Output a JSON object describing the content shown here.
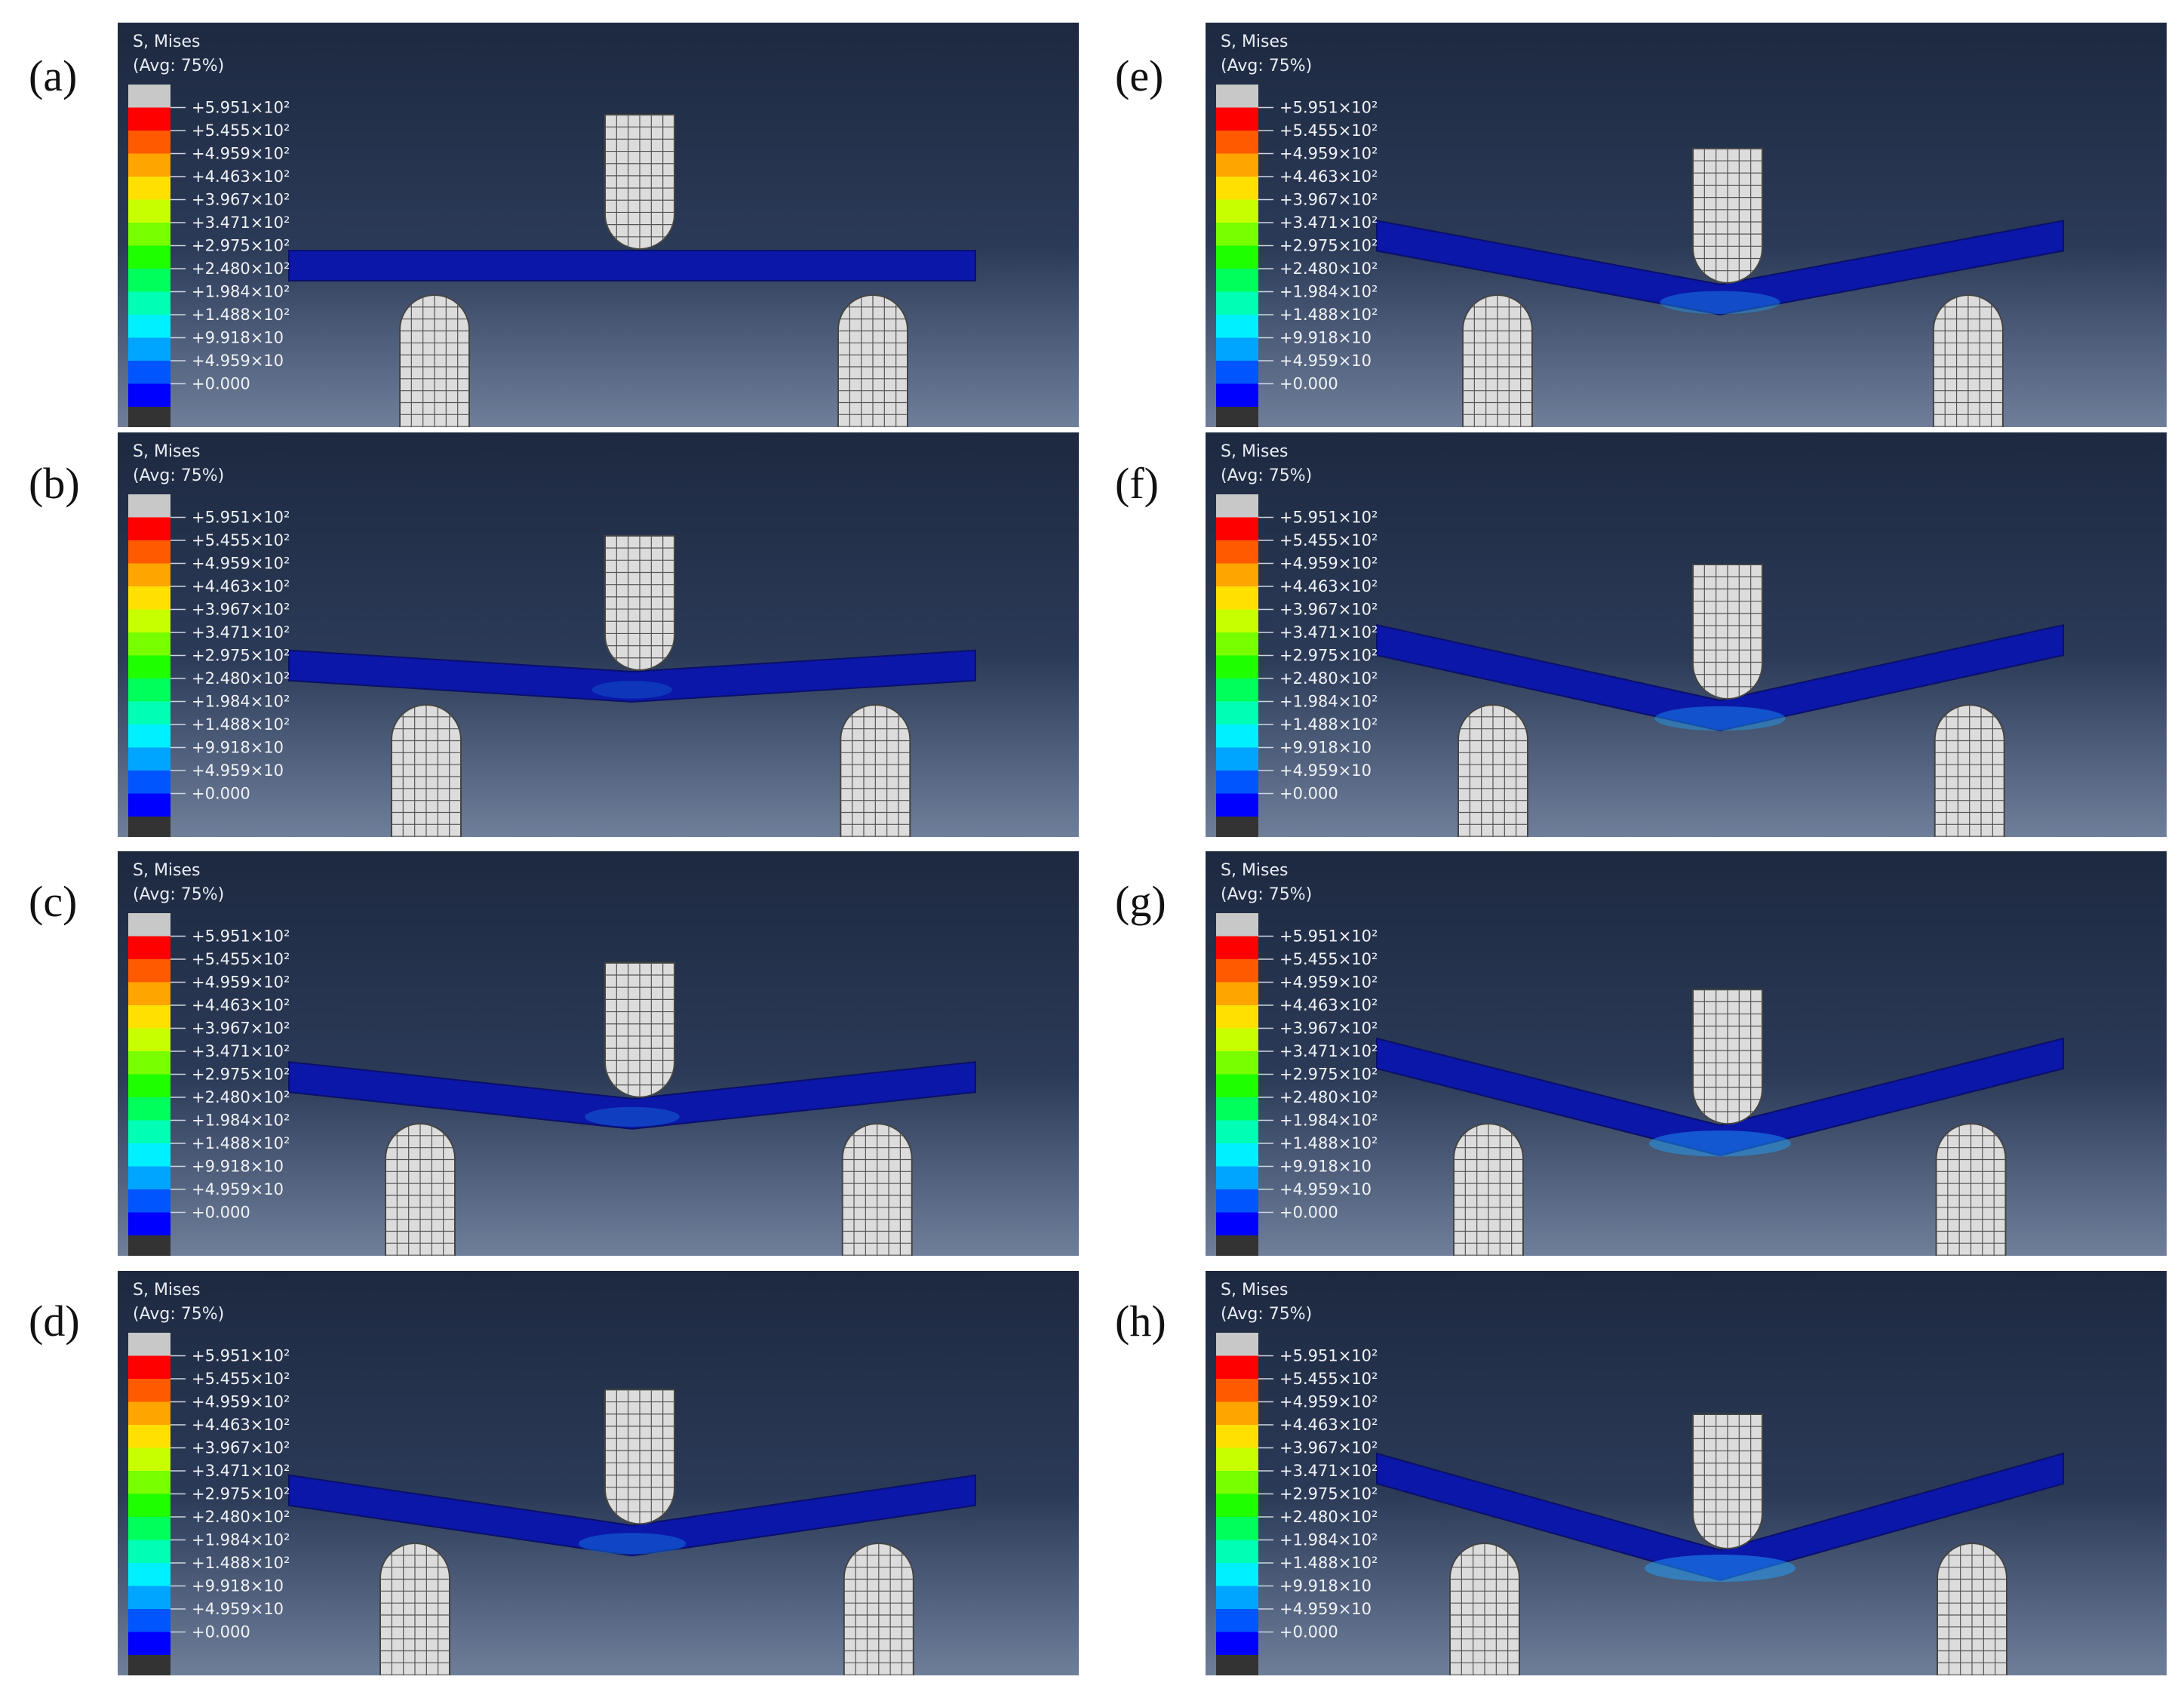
{
  "legend": {
    "title_line1": "S, Mises",
    "title_line2": "(Avg: 75%)",
    "colors": [
      "#c8c8c8",
      "#ff0000",
      "#ff5a00",
      "#ffa500",
      "#ffe000",
      "#c8ff00",
      "#78ff00",
      "#1eff00",
      "#00ff5a",
      "#00ffb4",
      "#00f0ff",
      "#00a5ff",
      "#0055ff",
      "#0000ff",
      "#333333"
    ],
    "labels": [
      "+5.951×10²",
      "+5.455×10²",
      "+4.959×10²",
      "+4.463×10²",
      "+3.967×10²",
      "+3.471×10²",
      "+2.975×10²",
      "+2.480×10²",
      "+1.984×10²",
      "+1.488×10²",
      "+9.918×10",
      "+4.959×10",
      "+0.000"
    ]
  },
  "panels": [
    {
      "id": "a",
      "letter": "(a)",
      "deflection": 0.0
    },
    {
      "id": "b",
      "letter": "(b)",
      "deflection": 0.22
    },
    {
      "id": "c",
      "letter": "(c)",
      "deflection": 0.38
    },
    {
      "id": "d",
      "letter": "(d)",
      "deflection": 0.52
    },
    {
      "id": "e",
      "letter": "(e)",
      "deflection": 0.66
    },
    {
      "id": "f",
      "letter": "(f)",
      "deflection": 0.78
    },
    {
      "id": "g",
      "letter": "(g)",
      "deflection": 0.9
    },
    {
      "id": "h",
      "letter": "(h)",
      "deflection": 1.0
    }
  ]
}
